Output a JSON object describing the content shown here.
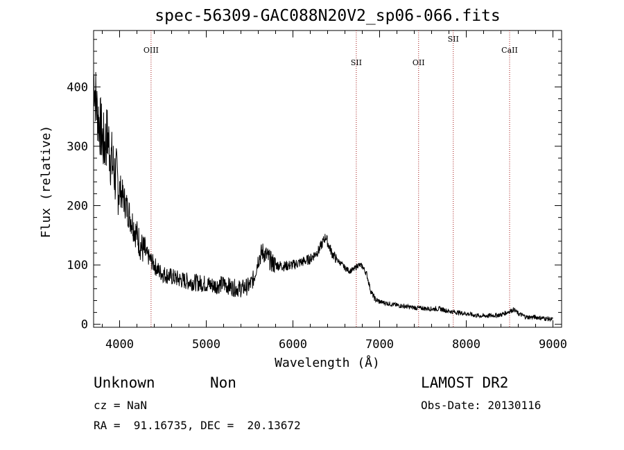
{
  "chart_data": {
    "type": "line",
    "title": "spec-56309-GAC088N20V2_sp06-066.fits",
    "xlabel": "Wavelength (Å)",
    "ylabel": "Flux (relative)",
    "xlim": [
      3700,
      9100
    ],
    "ylim": [
      -5,
      495
    ],
    "xticks": [
      4000,
      5000,
      6000,
      7000,
      8000,
      9000
    ],
    "yticks": [
      0,
      100,
      200,
      300,
      400
    ],
    "grid": false,
    "line_color": "#000000",
    "series": [
      {
        "x": [
          3700,
          3740,
          3780,
          3820,
          3860,
          3900,
          3950,
          4000,
          4050,
          4100,
          4150,
          4200,
          4250,
          4300,
          4350,
          4400,
          4450,
          4500,
          4600,
          4700,
          4800,
          4900,
          5000,
          5100,
          5200,
          5300,
          5400,
          5500,
          5550,
          5600,
          5650,
          5700,
          5750,
          5800,
          5900,
          6000,
          6100,
          6200,
          6300,
          6350,
          6380,
          6400,
          6450,
          6500,
          6550,
          6600,
          6650,
          6700,
          6750,
          6800,
          6850,
          6900,
          6950,
          7000,
          7100,
          7200,
          7300,
          7400,
          7500,
          7600,
          7700,
          7800,
          7900,
          8000,
          8100,
          8200,
          8300,
          8400,
          8500,
          8550,
          8600,
          8700,
          8800,
          8900,
          9000
        ],
        "y": [
          420,
          360,
          330,
          300,
          320,
          280,
          250,
          230,
          210,
          190,
          170,
          150,
          130,
          120,
          110,
          100,
          90,
          85,
          80,
          75,
          72,
          70,
          68,
          65,
          68,
          62,
          60,
          65,
          78,
          110,
          122,
          115,
          105,
          100,
          98,
          100,
          105,
          110,
          125,
          140,
          148,
          138,
          120,
          110,
          103,
          95,
          90,
          92,
          100,
          98,
          85,
          55,
          42,
          38,
          35,
          32,
          30,
          28,
          27,
          26,
          26,
          22,
          20,
          18,
          15,
          14,
          15,
          16,
          22,
          25,
          18,
          12,
          12,
          10,
          8
        ]
      }
    ],
    "lines": [
      {
        "label": "OIII",
        "x": 4363
      },
      {
        "label": "SII",
        "x": 6731
      },
      {
        "label": "OII",
        "x": 7450
      },
      {
        "label": "SII",
        "x": 7850
      },
      {
        "label": "CaII",
        "x": 8500
      }
    ],
    "line_marker_color": "#a01010"
  },
  "footer": {
    "object_class": "Unknown",
    "object_subclass": "Non",
    "survey": "LAMOST DR2",
    "cz": "cz = NaN",
    "obs_date": "Obs-Date: 20130116",
    "coords": "RA =  91.16735, DEC =  20.13672"
  }
}
